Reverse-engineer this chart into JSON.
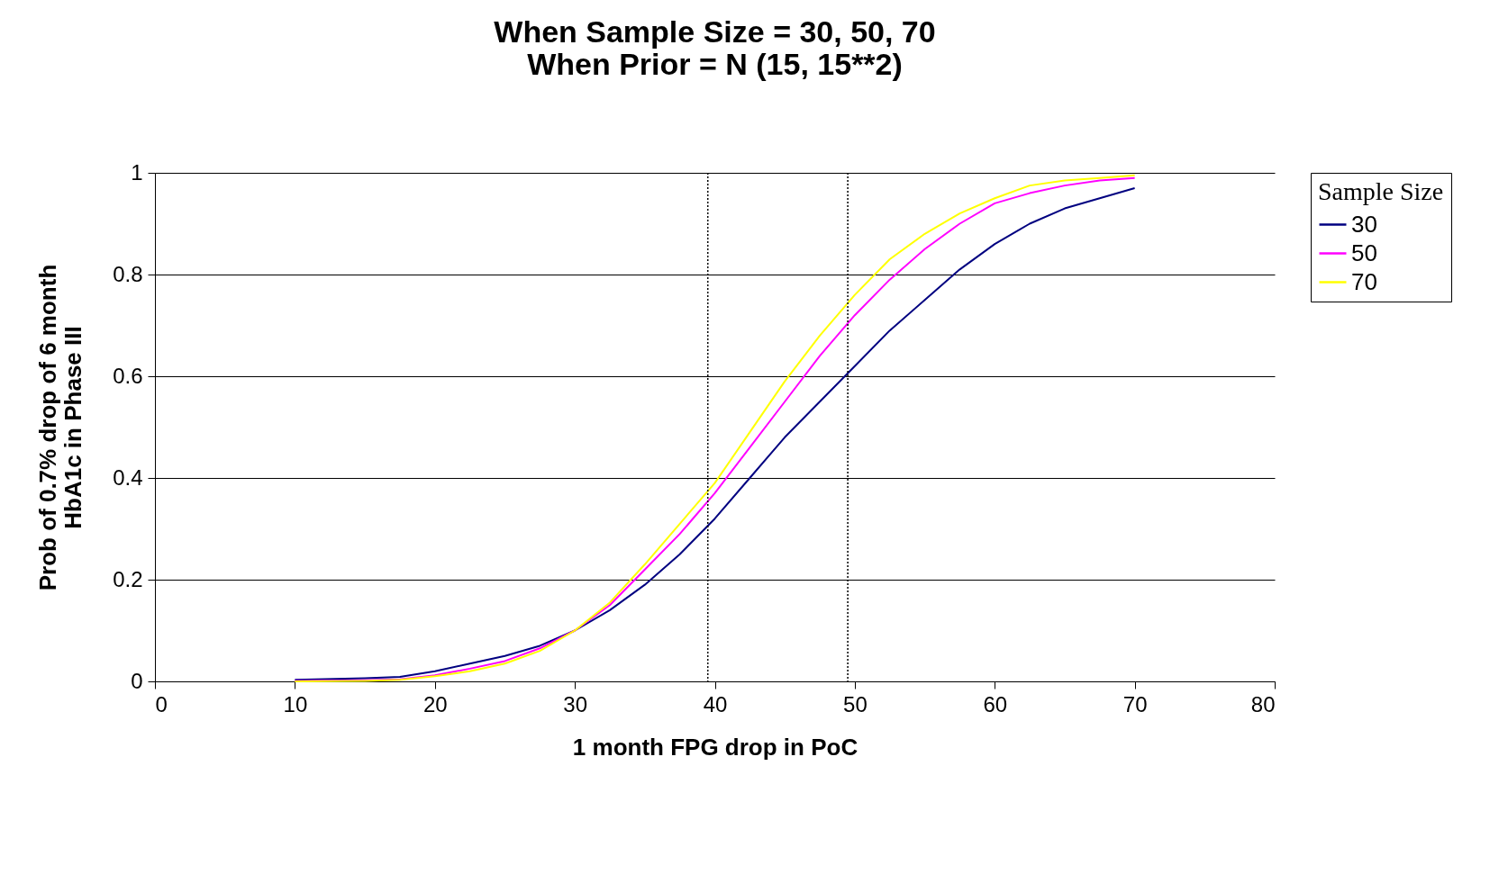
{
  "chart_data": {
    "type": "line",
    "title": "When Sample Size = 30, 50, 70\nWhen Prior = N (15, 15**2)",
    "xlabel": "1 month FPG drop in PoC",
    "ylabel": "Prob of 0.7% drop of 6 month\nHbA1c in Phase III",
    "legend_title": "Sample Size",
    "x": [
      10,
      15,
      17.5,
      20,
      22.5,
      25,
      27.5,
      30,
      32.5,
      35,
      37.5,
      40,
      42.5,
      45,
      47.5,
      50,
      52.5,
      55,
      57.5,
      60,
      62.5,
      65,
      67.5,
      70
    ],
    "series": [
      {
        "name": "30",
        "color": "#000080",
        "values": [
          0.003,
          0.006,
          0.009,
          0.02,
          0.035,
          0.05,
          0.07,
          0.1,
          0.14,
          0.19,
          0.25,
          0.32,
          0.4,
          0.48,
          0.55,
          0.62,
          0.69,
          0.75,
          0.81,
          0.86,
          0.9,
          0.93,
          0.95,
          0.97
        ]
      },
      {
        "name": "50",
        "color": "#ff00ff",
        "values": [
          0.001,
          0.002,
          0.004,
          0.012,
          0.025,
          0.04,
          0.065,
          0.1,
          0.15,
          0.22,
          0.29,
          0.37,
          0.46,
          0.55,
          0.64,
          0.72,
          0.79,
          0.85,
          0.9,
          0.94,
          0.96,
          0.975,
          0.985,
          0.99
        ]
      },
      {
        "name": "70",
        "color": "#ffff00",
        "values": [
          0.0,
          0.001,
          0.003,
          0.01,
          0.02,
          0.035,
          0.06,
          0.1,
          0.155,
          0.23,
          0.31,
          0.39,
          0.49,
          0.59,
          0.68,
          0.76,
          0.83,
          0.88,
          0.92,
          0.95,
          0.975,
          0.985,
          0.99,
          0.995
        ]
      }
    ],
    "xlim": [
      0,
      80
    ],
    "xticks": [
      0,
      10,
      20,
      30,
      40,
      50,
      60,
      70,
      80
    ],
    "ylim": [
      0,
      1
    ],
    "yticks": [
      0,
      0.2,
      0.4,
      0.6,
      0.8,
      1
    ],
    "ref_lines": [
      {
        "axis": "x",
        "value": 39.5,
        "line_style": "dotted"
      },
      {
        "axis": "x",
        "value": 49.5,
        "line_style": "dotted"
      }
    ],
    "grid": "y",
    "legend": "right"
  }
}
